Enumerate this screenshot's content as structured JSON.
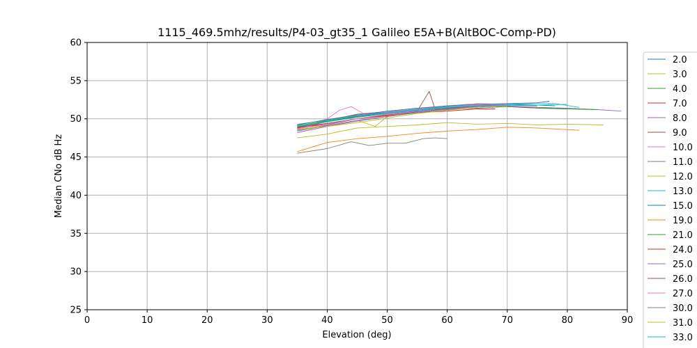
{
  "chart_data": {
    "type": "line",
    "title": "1115_469.5mhz/results/P4-03_gt35_1 Galileo E5A+B(AltBOC-Comp-PD)",
    "xlabel": "Elevation (deg)",
    "ylabel": "Median CNo dB Hz",
    "xlim": [
      0,
      90
    ],
    "ylim": [
      25,
      60
    ],
    "xticks": [
      0,
      10,
      20,
      30,
      40,
      50,
      60,
      70,
      80,
      90
    ],
    "yticks": [
      25,
      30,
      35,
      40,
      45,
      50,
      55,
      60
    ],
    "grid": true,
    "legend_position": "right-outside",
    "series": [
      {
        "name": "2.0",
        "color": "#1f77b4",
        "x": [
          35,
          40,
          45,
          50,
          55,
          60,
          65,
          70,
          75,
          78
        ],
        "y": [
          49.0,
          49.6,
          50.4,
          50.9,
          51.3,
          51.6,
          51.8,
          51.9,
          51.8,
          51.7
        ]
      },
      {
        "name": "3.0",
        "color": "#bcbd22",
        "x": [
          35,
          40,
          45,
          50,
          55,
          60,
          65,
          70,
          75,
          80,
          86
        ],
        "y": [
          47.5,
          48.0,
          48.8,
          49.0,
          49.2,
          49.5,
          49.3,
          49.4,
          49.2,
          49.3,
          49.2
        ]
      },
      {
        "name": "4.0",
        "color": "#2ca02c",
        "x": [
          35,
          40,
          45,
          50,
          55,
          60,
          65,
          70,
          72
        ],
        "y": [
          48.8,
          49.8,
          50.3,
          50.8,
          51.2,
          51.5,
          51.8,
          51.9,
          51.8
        ]
      },
      {
        "name": "7.0",
        "color": "#d62728",
        "x": [
          35,
          40,
          45,
          50,
          55,
          60,
          65,
          68
        ],
        "y": [
          48.7,
          49.4,
          50.0,
          50.4,
          50.8,
          51.0,
          51.3,
          51.3
        ]
      },
      {
        "name": "8.0",
        "color": "#9467bd",
        "x": [
          35,
          40,
          45,
          50,
          55,
          60,
          65,
          70,
          75,
          80,
          85,
          89
        ],
        "y": [
          48.5,
          49.2,
          50.0,
          50.6,
          51.0,
          51.4,
          51.6,
          51.7,
          51.5,
          51.4,
          51.2,
          51.0
        ]
      },
      {
        "name": "9.0",
        "color": "#8c564b",
        "x": [
          35,
          40,
          45,
          50,
          55,
          57,
          58,
          60,
          65,
          70,
          75,
          80
        ],
        "y": [
          48.9,
          49.8,
          50.6,
          50.9,
          51.0,
          53.6,
          51.2,
          51.5,
          51.7,
          51.6,
          51.4,
          51.3
        ]
      },
      {
        "name": "10.0",
        "color": "#e377c2",
        "x": [
          35,
          40,
          42,
          44,
          46,
          50,
          55,
          60,
          65,
          70
        ],
        "y": [
          48.6,
          50.0,
          51.1,
          51.6,
          50.7,
          50.9,
          51.3,
          51.7,
          52.0,
          51.9
        ]
      },
      {
        "name": "11.0",
        "color": "#7f7f7f",
        "x": [
          35,
          40,
          44,
          47,
          50,
          53,
          56,
          58,
          60
        ],
        "y": [
          45.5,
          46.1,
          47.0,
          46.5,
          46.8,
          46.8,
          47.4,
          47.5,
          47.4
        ]
      },
      {
        "name": "12.0",
        "color": "#bcbd22",
        "x": [
          35,
          40,
          45,
          48,
          50,
          55,
          60,
          65,
          70
        ],
        "y": [
          48.6,
          49.1,
          49.8,
          49.0,
          50.3,
          50.9,
          51.2,
          51.6,
          51.8
        ]
      },
      {
        "name": "13.0",
        "color": "#17becf",
        "x": [
          35,
          40,
          45,
          50,
          55,
          60,
          65,
          70,
          75,
          78,
          82
        ],
        "y": [
          49.3,
          49.8,
          50.4,
          50.8,
          51.2,
          51.6,
          51.8,
          51.9,
          52.0,
          52.0,
          51.5
        ]
      },
      {
        "name": "15.0",
        "color": "#1f77b4",
        "x": [
          35,
          40,
          45,
          50,
          55,
          60,
          65,
          70,
          75,
          77
        ],
        "y": [
          49.2,
          49.9,
          50.5,
          51.0,
          51.4,
          51.7,
          51.9,
          52.0,
          52.1,
          52.3
        ]
      },
      {
        "name": "19.0",
        "color": "#ff7f0e",
        "x": [
          35,
          40,
          45,
          50,
          55,
          60,
          65,
          70,
          75,
          82
        ],
        "y": [
          45.7,
          46.9,
          47.4,
          47.7,
          48.1,
          48.4,
          48.6,
          48.9,
          48.8,
          48.5
        ]
      },
      {
        "name": "21.0",
        "color": "#2ca02c",
        "x": [
          35,
          40,
          45,
          50,
          55,
          60,
          65,
          70,
          75,
          80,
          85
        ],
        "y": [
          49.1,
          49.7,
          50.2,
          50.7,
          51.1,
          51.5,
          51.7,
          51.6,
          51.5,
          51.3,
          51.2
        ]
      },
      {
        "name": "24.0",
        "color": "#d62728",
        "x": [
          35,
          40,
          45,
          50,
          55,
          60,
          65,
          70
        ],
        "y": [
          48.9,
          49.4,
          50.0,
          50.5,
          50.9,
          51.3,
          51.6,
          51.8
        ]
      },
      {
        "name": "25.0",
        "color": "#9467bd",
        "x": [
          35,
          40,
          45,
          50,
          55,
          60,
          65,
          70,
          75
        ],
        "y": [
          48.2,
          49.0,
          49.7,
          50.3,
          50.9,
          51.3,
          51.6,
          51.8,
          51.7
        ]
      },
      {
        "name": "26.0",
        "color": "#8c564b",
        "x": [
          35,
          40,
          45,
          50,
          55,
          60,
          65,
          70
        ],
        "y": [
          48.8,
          49.6,
          50.3,
          50.7,
          51.1,
          51.4,
          51.7,
          51.9
        ]
      },
      {
        "name": "27.0",
        "color": "#e377c2",
        "x": [
          35,
          40,
          45,
          50,
          55,
          60,
          65,
          70
        ],
        "y": [
          48.7,
          49.3,
          50.0,
          50.6,
          51.1,
          51.5,
          51.8,
          51.9
        ]
      },
      {
        "name": "30.0",
        "color": "#7f7f7f",
        "x": [
          35,
          40,
          45,
          50,
          55,
          60,
          65,
          70,
          75
        ],
        "y": [
          48.4,
          49.1,
          49.8,
          50.3,
          50.8,
          51.2,
          51.4,
          51.6,
          51.5
        ]
      },
      {
        "name": "31.0",
        "color": "#bcbd22",
        "x": [
          35,
          40,
          45,
          50,
          55,
          60,
          65,
          70
        ],
        "y": [
          48.6,
          49.0,
          49.5,
          50.1,
          50.7,
          51.1,
          51.5,
          51.7
        ]
      },
      {
        "name": "33.0",
        "color": "#17becf",
        "x": [
          35,
          40,
          45,
          50,
          55,
          60,
          65,
          70,
          75,
          80
        ],
        "y": [
          49.0,
          49.6,
          50.2,
          50.7,
          51.1,
          51.5,
          51.7,
          51.8,
          51.8,
          51.9
        ]
      }
    ]
  }
}
